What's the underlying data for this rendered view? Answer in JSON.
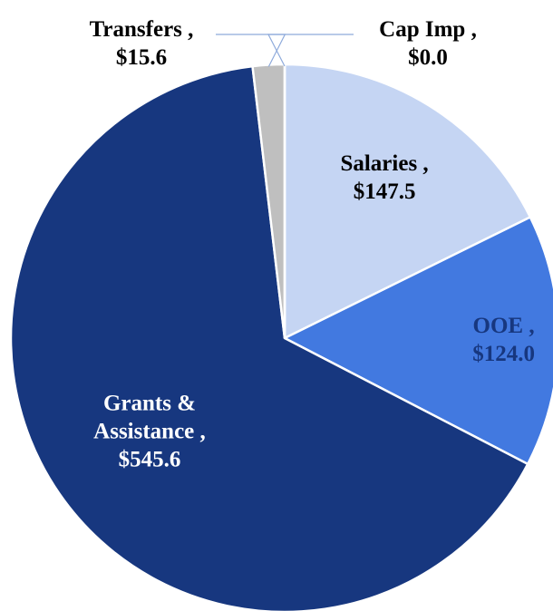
{
  "chart_data": {
    "type": "pie",
    "categories": [
      "Salaries ,",
      "OOE ,",
      "Grants & Assistance ,",
      "Transfers ,",
      "Cap Imp ,"
    ],
    "values": [
      147.5,
      124.0,
      545.6,
      15.6,
      0.0
    ],
    "value_labels": [
      "$147.5",
      "$124.0",
      "$545.6",
      "$15.6",
      "$0.0"
    ],
    "colors": [
      "#c5d5f3",
      "#4279e0",
      "#17377f",
      "#bfbfbf",
      "#a6a6a6"
    ],
    "label_colors": [
      "#000000",
      "#17377f",
      "#ffffff",
      "#000000",
      "#000000"
    ]
  }
}
